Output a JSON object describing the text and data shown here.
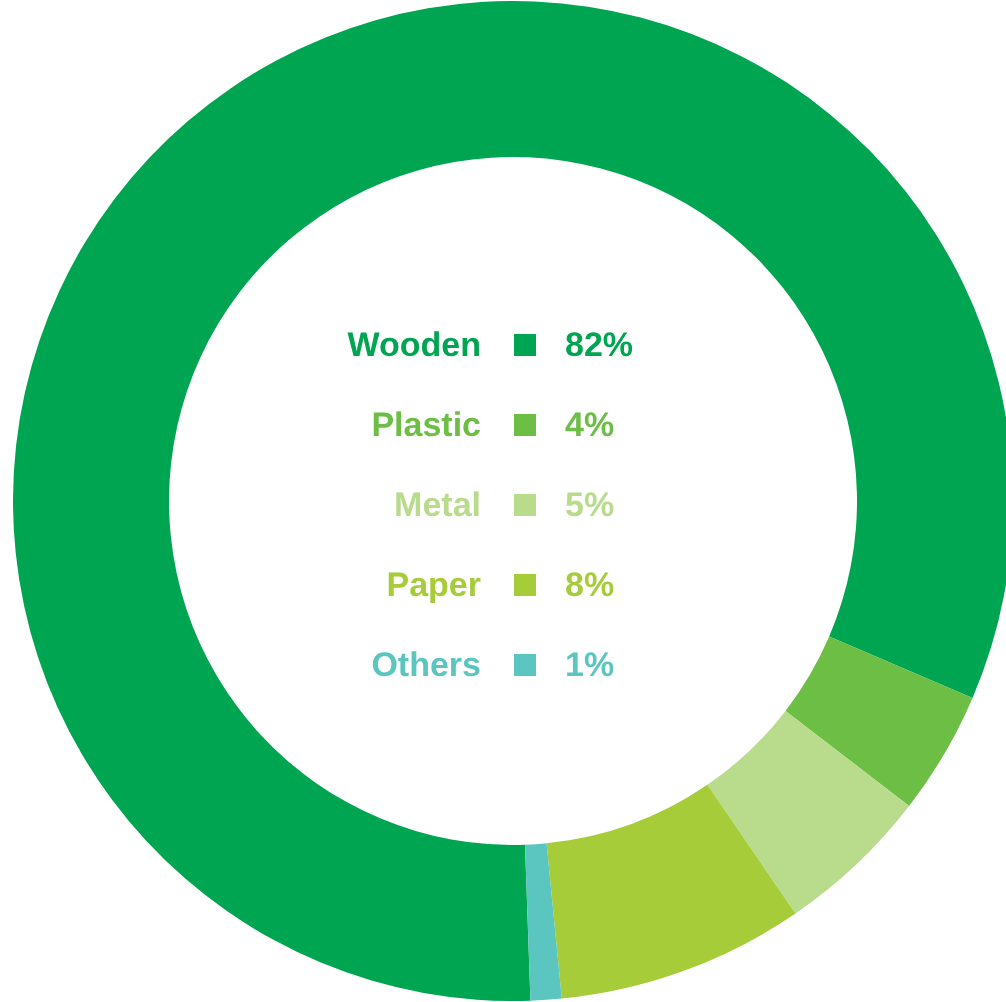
{
  "chart_data": {
    "type": "donut",
    "categories": [
      "Wooden",
      "Plastic",
      "Metal",
      "Paper",
      "Others"
    ],
    "values": [
      82,
      4,
      5,
      8,
      1
    ],
    "colors": [
      "#00a551",
      "#6cbe45",
      "#b9db8c",
      "#a6cc3a",
      "#5bc5bf"
    ],
    "value_labels": [
      "82%",
      "4%",
      "5%",
      "8%",
      "1%"
    ],
    "legend": "center"
  }
}
